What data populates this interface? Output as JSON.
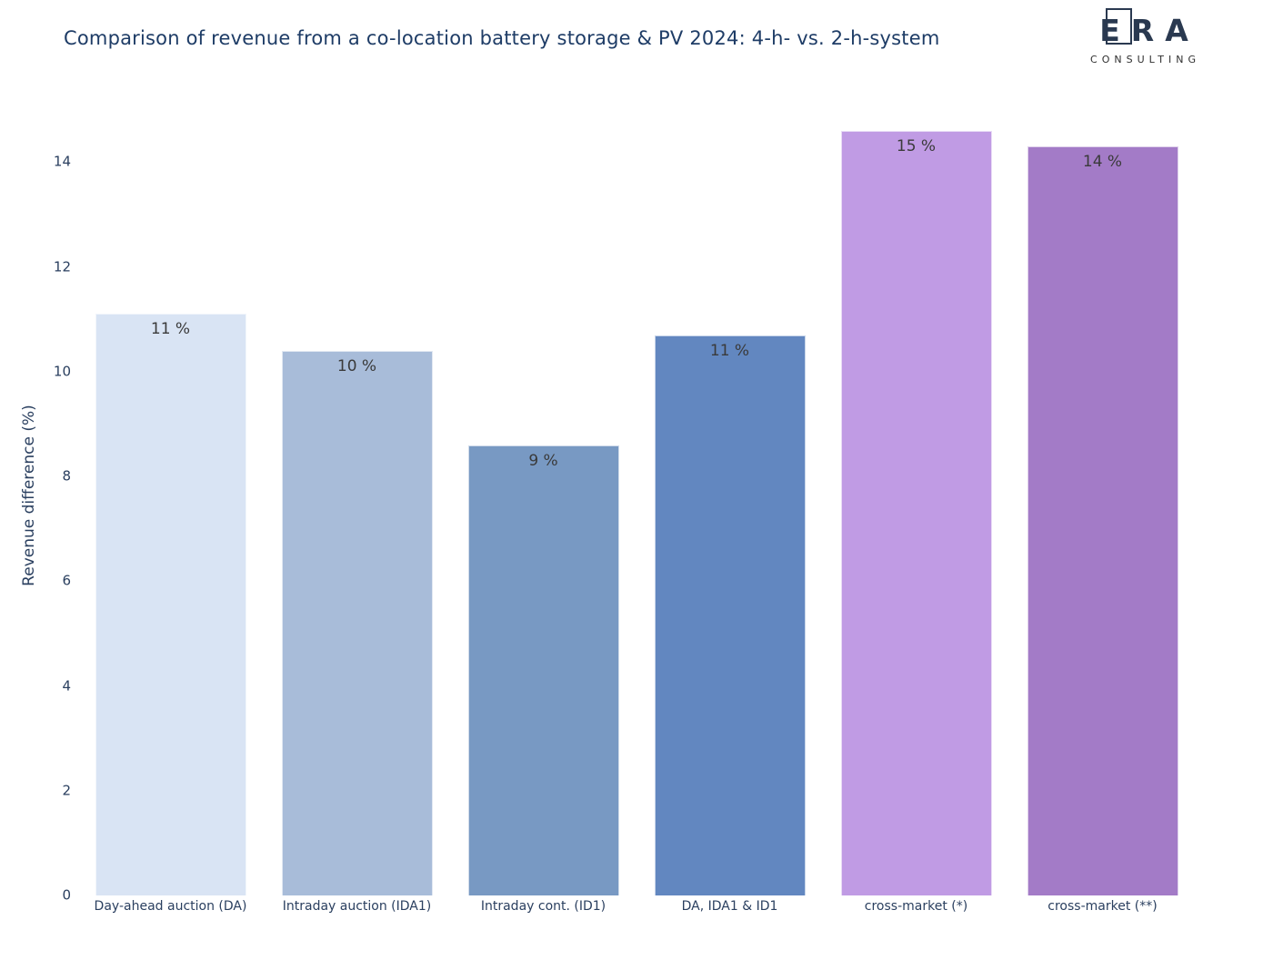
{
  "title": "Comparison of revenue from a co-location battery storage & PV 2024: 4-h- vs. 2-h-system",
  "logo": {
    "letters": [
      "E",
      "R",
      "A"
    ],
    "subtitle": "CONSULTING",
    "color": "#2a3950"
  },
  "colors": {
    "title_text": "#1e3c66",
    "axis_text": "#2a3f5f",
    "value_label_text": "#3a3a3a",
    "background": "#ffffff"
  },
  "chart_data": {
    "type": "bar",
    "title": "Comparison of revenue from a co-location battery storage & PV 2024: 4-h- vs. 2-h-system",
    "xlabel": "",
    "ylabel": "Revenue difference (%)",
    "ylim": [
      0,
      15.1
    ],
    "yticks": [
      0,
      2,
      4,
      6,
      8,
      10,
      12,
      14
    ],
    "grid": false,
    "legend": false,
    "categories": [
      "Day-ahead auction (DA)",
      "Intraday auction (IDA1)",
      "Intraday cont. (ID1)",
      "DA, IDA1 & ID1",
      "cross-market (*)",
      "cross-market (**)"
    ],
    "values": [
      11.1,
      10.4,
      8.6,
      10.7,
      14.6,
      14.3
    ],
    "value_labels": [
      "11 %",
      "10 %",
      "9 %",
      "11 %",
      "15 %",
      "14 %"
    ],
    "bar_colors": [
      "#d9e4f4",
      "#a8bcd9",
      "#7899c3",
      "#6287c0",
      "#c09be4",
      "#a37bc7"
    ]
  }
}
